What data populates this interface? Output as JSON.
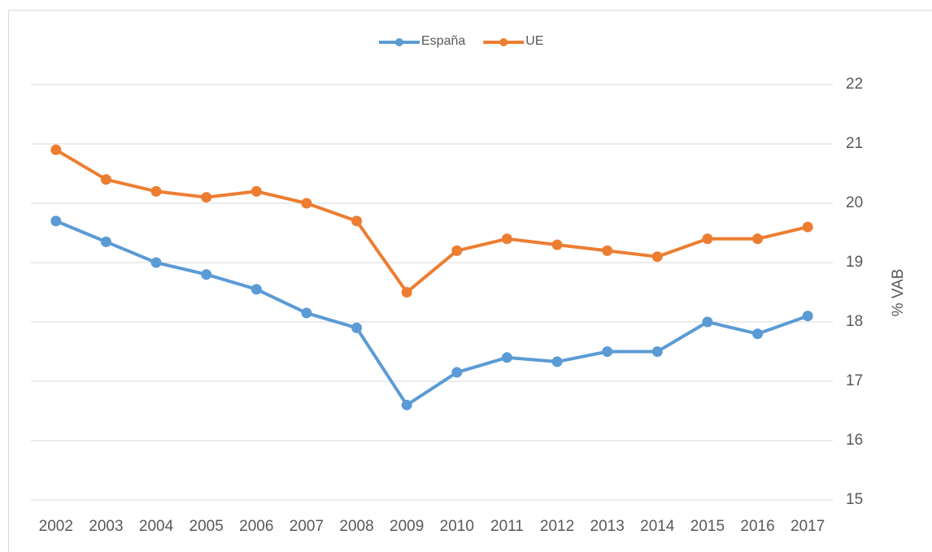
{
  "chart_data": {
    "type": "line",
    "categories": [
      "2002",
      "2003",
      "2004",
      "2005",
      "2006",
      "2007",
      "2008",
      "2009",
      "2010",
      "2011",
      "2012",
      "2013",
      "2014",
      "2015",
      "2016",
      "2017"
    ],
    "series": [
      {
        "name": "España",
        "color": "#5b9bd5",
        "values": [
          19.7,
          19.35,
          19.0,
          18.8,
          18.55,
          18.15,
          17.9,
          16.6,
          17.15,
          17.4,
          17.33,
          17.5,
          17.5,
          18.0,
          17.8,
          18.1
        ]
      },
      {
        "name": "UE",
        "color": "#ed7d31",
        "values": [
          20.9,
          20.4,
          20.2,
          20.1,
          20.2,
          20.0,
          19.7,
          18.5,
          19.2,
          19.4,
          19.3,
          19.2,
          19.1,
          19.4,
          19.4,
          19.6
        ]
      }
    ],
    "ylabel": "% VAB",
    "ylim": [
      15,
      22
    ],
    "yticks": [
      15,
      16,
      17,
      18,
      19,
      20,
      21,
      22
    ],
    "grid": true,
    "legend": "top"
  }
}
